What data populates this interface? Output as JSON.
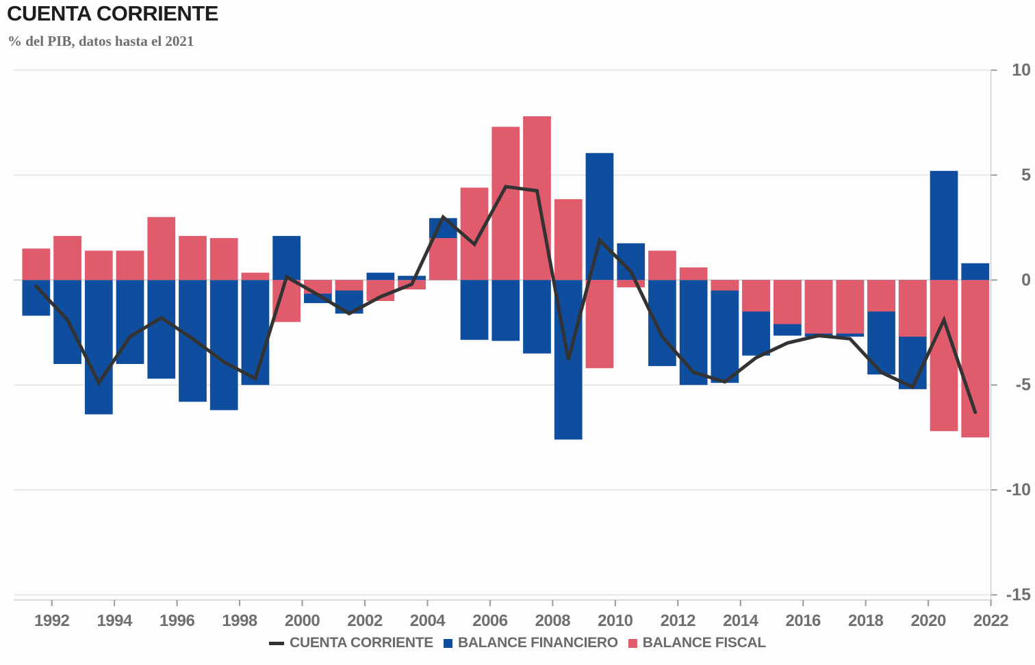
{
  "header": {
    "title": "CUENTA CORRIENTE",
    "subtitle": "% del PIB, datos hasta el 2021"
  },
  "legend": {
    "items": [
      {
        "marker": "line",
        "label": "CUENTA CORRIENTE",
        "color": "#333333"
      },
      {
        "marker": "square",
        "label": "BALANCE FINANCIERO",
        "color": "#0f4d9f"
      },
      {
        "marker": "square",
        "label": "BALANCE FISCAL",
        "color": "#e05c6c"
      }
    ]
  },
  "colors": {
    "line": "#333333",
    "blue_bar": "#0f4d9f",
    "red_bar": "#e05c6c",
    "gridline": "#e3e3e3",
    "zero_line": "#cccccc",
    "axis_line": "#cfcfcf",
    "tick": "#9a9a9a",
    "axis_text": "#6f6f6f"
  },
  "chart_data": {
    "type": "bar",
    "title": "CUENTA CORRIENTE",
    "subtitle": "% del PIB, datos hasta el 2021",
    "xlabel": "",
    "ylabel": "% del PIB",
    "ylim": [
      -15,
      10
    ],
    "yticks": [
      10,
      5,
      0,
      -5,
      -10,
      -15
    ],
    "xticks": [
      1992,
      1994,
      1996,
      1998,
      2000,
      2002,
      2004,
      2006,
      2008,
      2010,
      2012,
      2014,
      2016,
      2018,
      2020,
      2022
    ],
    "grid": "horizontal",
    "legend_position": "bottom",
    "categories": [
      1991,
      1992,
      1993,
      1994,
      1995,
      1996,
      1997,
      1998,
      1999,
      2000,
      2001,
      2002,
      2003,
      2004,
      2005,
      2006,
      2007,
      2008,
      2009,
      2010,
      2011,
      2012,
      2013,
      2014,
      2015,
      2016,
      2017,
      2018,
      2019,
      2020,
      2021
    ],
    "series": [
      {
        "name": "CUENTA CORRIENTE",
        "type": "line",
        "color": "#333333",
        "values": [
          -0.3,
          -1.9,
          -4.9,
          -2.7,
          -1.8,
          -2.8,
          -3.9,
          -4.7,
          0.15,
          -0.7,
          -1.6,
          -0.8,
          -0.2,
          3.0,
          1.7,
          4.45,
          4.25,
          -3.8,
          1.9,
          0.4,
          -2.7,
          -4.4,
          -4.85,
          -3.7,
          -3.0,
          -2.65,
          -2.8,
          -4.4,
          -5.1,
          -1.9,
          -6.3
        ]
      },
      {
        "name": "BALANCE FINANCIERO",
        "type": "bar",
        "color": "#0f4d9f",
        "values": [
          -1.7,
          -4.0,
          -6.4,
          -4.0,
          -4.7,
          -5.8,
          -6.2,
          -5.0,
          2.1,
          -1.1,
          -1.6,
          0.35,
          0.2,
          2.95,
          -2.85,
          -2.9,
          -3.5,
          -7.6,
          6.05,
          1.75,
          -4.1,
          -5.0,
          -4.9,
          -3.6,
          -2.65,
          -2.7,
          -2.7,
          -4.5,
          -5.2,
          5.2,
          0.8
        ]
      },
      {
        "name": "BALANCE FISCAL",
        "type": "bar",
        "color": "#e05c6c",
        "values": [
          1.5,
          2.1,
          1.4,
          1.4,
          3.0,
          2.1,
          2.0,
          0.35,
          -2.0,
          -0.65,
          -0.5,
          -1.0,
          -0.45,
          2.0,
          4.4,
          7.3,
          7.8,
          3.85,
          -4.2,
          -0.35,
          1.4,
          0.6,
          -0.5,
          -1.5,
          -2.1,
          -2.55,
          -2.55,
          -1.5,
          -2.7,
          -7.2,
          -7.5
        ]
      }
    ]
  }
}
